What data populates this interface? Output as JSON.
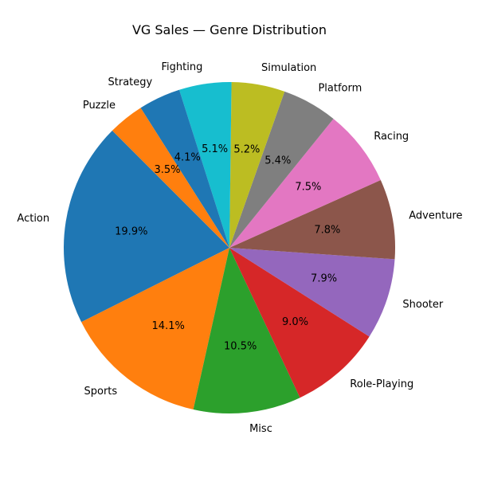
{
  "chart_data": {
    "type": "pie",
    "title": "VG Sales — Genre Distribution",
    "start_angle_deg": 135,
    "direction": "counterclockwise",
    "categories": [
      "Action",
      "Sports",
      "Misc",
      "Role-Playing",
      "Shooter",
      "Adventure",
      "Racing",
      "Platform",
      "Simulation",
      "Fighting",
      "Strategy",
      "Puzzle"
    ],
    "values": [
      19.9,
      14.1,
      10.5,
      9.0,
      7.9,
      7.8,
      7.5,
      5.4,
      5.2,
      5.1,
      4.1,
      3.5
    ],
    "value_labels": [
      "19.9%",
      "14.1%",
      "10.5%",
      "9.0%",
      "7.9%",
      "7.8%",
      "7.5%",
      "5.4%",
      "5.2%",
      "5.1%",
      "4.1%",
      "3.5%"
    ],
    "colors": [
      "#1f77b4",
      "#ff7f0e",
      "#2ca02c",
      "#d62728",
      "#9467bd",
      "#8c564b",
      "#e377c2",
      "#7f7f7f",
      "#bcbd22",
      "#17becf",
      "#1f77b4",
      "#ff7f0e"
    ],
    "legend": "none"
  }
}
